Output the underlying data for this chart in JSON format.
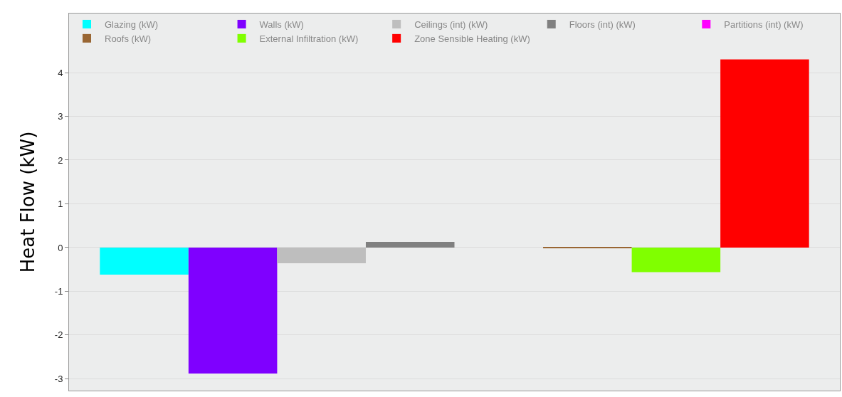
{
  "chart_data": {
    "type": "bar",
    "ylabel": "Heat Flow (kW)",
    "categories": [
      null
    ],
    "series": [
      {
        "name": "Glazing (kW)",
        "color": "#00ffff",
        "values": [
          -0.62
        ]
      },
      {
        "name": "Walls (kW)",
        "color": "#7f00ff",
        "values": [
          -2.88
        ]
      },
      {
        "name": "Ceilings (int) (kW)",
        "color": "#bebebe",
        "values": [
          -0.36
        ]
      },
      {
        "name": "Floors (int) (kW)",
        "color": "#808080",
        "values": [
          0.13
        ]
      },
      {
        "name": "Partitions (int) (kW)",
        "color": "#ff00ff",
        "values": [
          0
        ]
      },
      {
        "name": "Roofs (kW)",
        "color": "#996633",
        "values": [
          -0.01
        ]
      },
      {
        "name": "External Infiltration (kW)",
        "color": "#80ff00",
        "values": [
          -0.56
        ]
      },
      {
        "name": "Zone Sensible Heating (kW)",
        "color": "#ff0000",
        "values": [
          4.3
        ]
      }
    ],
    "ylim": [
      -3.27,
      5.35
    ],
    "yticks": [
      -3,
      -2,
      -1,
      0,
      1,
      2,
      3,
      4
    ],
    "grid": "y",
    "legend": "top left",
    "tick_labels": "y"
  }
}
